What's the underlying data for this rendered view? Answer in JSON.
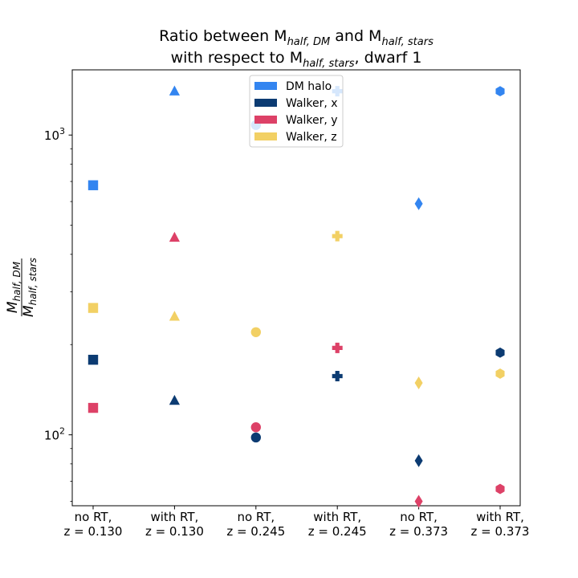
{
  "chart_data": {
    "type": "scatter",
    "title": {
      "line1": {
        "pre": "Ratio between M",
        "sub1": "half, DM",
        "mid": " and M",
        "sub2": "half, stars"
      },
      "line2": {
        "pre": "with respect to M",
        "sub": "half, stars",
        "post": ", dwarf 1"
      }
    },
    "ylabel": {
      "num_base": "M",
      "num_sub": "half, DM",
      "den_base": "M",
      "den_sub": "half, stars"
    },
    "y_scale": "log",
    "ylim": [
      58,
      1650
    ],
    "y_major_ticks": [
      {
        "value": 100,
        "base": "10",
        "exp": "2"
      },
      {
        "value": 1000,
        "base": "10",
        "exp": "3"
      }
    ],
    "categories": [
      {
        "line1": "no RT,",
        "line2": "z = 0.130"
      },
      {
        "line1": "with RT,",
        "line2": "z = 0.130"
      },
      {
        "line1": "no RT,",
        "line2": "z = 0.245"
      },
      {
        "line1": "with RT,",
        "line2": "z = 0.245"
      },
      {
        "line1": "no RT,",
        "line2": "z = 0.373"
      },
      {
        "line1": "with RT,",
        "line2": "z = 0.373"
      }
    ],
    "category_markers": [
      "square",
      "triangle",
      "circle",
      "plus",
      "diamond",
      "hexagon"
    ],
    "series": [
      {
        "name": "DM halo",
        "color": "#3385f0",
        "values": [
          680,
          1400,
          1080,
          1400,
          590,
          1400
        ]
      },
      {
        "name": "Walker, x",
        "color": "#0c3b72",
        "values": [
          178,
          130,
          98,
          157,
          82,
          188
        ]
      },
      {
        "name": "Walker, y",
        "color": "#dd4167",
        "values": [
          123,
          455,
          106,
          195,
          60,
          66
        ]
      },
      {
        "name": "Walker, z",
        "color": "#f2d064",
        "values": [
          265,
          248,
          220,
          460,
          149,
          160
        ]
      }
    ],
    "legend_position": "top-center",
    "grid": false
  }
}
